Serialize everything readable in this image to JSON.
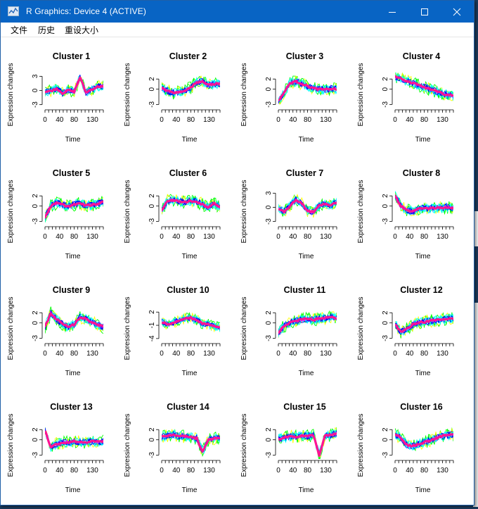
{
  "window": {
    "title": "R Graphics: Device 4 (ACTIVE)",
    "controls": {
      "minimize": "minimize",
      "maximize": "maximize",
      "close": "close"
    }
  },
  "menu": [
    "文件",
    "历史",
    "重设大小"
  ],
  "colors": {
    "titlebar": "#0864c4",
    "mean_line": "#ff1493",
    "series_palette": [
      "#00ff00",
      "#00ffff",
      "#0000ff",
      "#ff00ff",
      "#ffff00"
    ]
  },
  "chart_data": {
    "type": "line",
    "layout": "4x4 grid of small-multiple line plots",
    "x_label": "Time",
    "y_label": "Expression changes",
    "x_ticks": [
      0,
      40,
      80,
      130
    ],
    "panels": [
      {
        "title": "Cluster 1",
        "y_ticks": [
          -3,
          0,
          3
        ],
        "ylim": [
          -3.5,
          3.5
        ],
        "mean": [
          -0.3,
          -0.1,
          0.4,
          -0.6,
          0.1,
          -0.3,
          2.8,
          -0.4,
          0.2,
          0.8,
          0.9
        ]
      },
      {
        "title": "Cluster 2",
        "y_ticks": [
          -3,
          0,
          2
        ],
        "ylim": [
          -3.5,
          3
        ],
        "mean": [
          0.2,
          -0.3,
          -0.7,
          -0.6,
          -0.2,
          0.3,
          1.4,
          1.6,
          0.8,
          1.0,
          1.1
        ]
      },
      {
        "title": "Cluster 3",
        "y_ticks": [
          -3,
          0,
          2
        ],
        "ylim": [
          -3.5,
          3
        ],
        "mean": [
          -2.3,
          -0.6,
          1.2,
          1.5,
          1.1,
          0.6,
          0.2,
          0.0,
          -0.1,
          0.1,
          0.0
        ]
      },
      {
        "title": "Cluster 4",
        "y_ticks": [
          -3,
          0,
          2
        ],
        "ylim": [
          -3.5,
          3
        ],
        "mean": [
          2.5,
          2.0,
          1.6,
          1.2,
          0.8,
          0.4,
          0.0,
          -0.4,
          -0.8,
          -1.1,
          -1.3
        ]
      },
      {
        "title": "Cluster 5",
        "y_ticks": [
          -3,
          0,
          2
        ],
        "ylim": [
          -3.5,
          3
        ],
        "mean": [
          -2.3,
          0.0,
          0.6,
          0.3,
          -0.1,
          0.3,
          0.5,
          0.1,
          0.2,
          0.4,
          0.9
        ]
      },
      {
        "title": "Cluster 6",
        "y_ticks": [
          -3,
          0,
          2
        ],
        "ylim": [
          -3.5,
          3
        ],
        "mean": [
          -0.8,
          1.0,
          1.2,
          0.9,
          0.8,
          1.0,
          0.9,
          0.3,
          -0.2,
          0.5,
          -0.2
        ]
      },
      {
        "title": "Cluster 7",
        "y_ticks": [
          -3,
          0,
          3
        ],
        "ylim": [
          -3.5,
          3.5
        ],
        "mean": [
          -0.2,
          -0.9,
          0.3,
          1.6,
          0.8,
          -0.7,
          -1.0,
          0.4,
          0.8,
          0.3,
          1.2
        ]
      },
      {
        "title": "Cluster 8",
        "y_ticks": [
          -3,
          0,
          2
        ],
        "ylim": [
          -3.5,
          3
        ],
        "mean": [
          2.0,
          0.0,
          -0.8,
          -1.0,
          -0.6,
          -0.3,
          -0.5,
          -0.4,
          -0.3,
          -0.2,
          -0.4
        ]
      },
      {
        "title": "Cluster 9",
        "y_ticks": [
          -3,
          0,
          2
        ],
        "ylim": [
          -3.5,
          3
        ],
        "mean": [
          -0.8,
          1.9,
          0.7,
          -0.2,
          -0.9,
          -0.3,
          1.1,
          0.8,
          0.2,
          -0.3,
          -0.8
        ]
      },
      {
        "title": "Cluster 10",
        "y_ticks": [
          -4,
          -1,
          2
        ],
        "ylim": [
          -4.5,
          3
        ],
        "mean": [
          -0.2,
          -0.8,
          -0.4,
          0.2,
          0.5,
          0.7,
          0.2,
          -0.6,
          -0.8,
          -1.2,
          -1.5
        ]
      },
      {
        "title": "Cluster 11",
        "y_ticks": [
          -3,
          0,
          2
        ],
        "ylim": [
          -3.5,
          3
        ],
        "mean": [
          -2.0,
          -0.6,
          0.1,
          0.4,
          0.6,
          0.8,
          0.6,
          0.9,
          1.0,
          1.1,
          0.9
        ]
      },
      {
        "title": "Cluster 12",
        "y_ticks": [
          -3,
          0,
          2
        ],
        "ylim": [
          -3.5,
          3
        ],
        "mean": [
          -0.2,
          -1.8,
          -1.2,
          -0.4,
          0.1,
          0.2,
          0.4,
          0.5,
          0.6,
          0.8,
          0.9
        ]
      },
      {
        "title": "Cluster 13",
        "y_ticks": [
          -3,
          0,
          2
        ],
        "ylim": [
          -3.5,
          3
        ],
        "mean": [
          1.8,
          -1.5,
          -0.8,
          -0.6,
          -0.5,
          -0.3,
          -0.4,
          -0.5,
          -0.3,
          -0.4,
          -0.3
        ]
      },
      {
        "title": "Cluster 14",
        "y_ticks": [
          -3,
          0,
          2
        ],
        "ylim": [
          -3.5,
          3
        ],
        "mean": [
          0.6,
          0.8,
          1.0,
          0.7,
          0.6,
          0.5,
          0.3,
          -2.3,
          0.0,
          0.2,
          0.4
        ]
      },
      {
        "title": "Cluster 15",
        "y_ticks": [
          -3,
          0,
          2
        ],
        "ylim": [
          -3.5,
          3
        ],
        "mean": [
          0.2,
          0.4,
          0.7,
          0.6,
          0.8,
          0.7,
          0.9,
          -3.0,
          0.8,
          0.9,
          1.2
        ]
      },
      {
        "title": "Cluster 16",
        "y_ticks": [
          -3,
          0,
          2
        ],
        "ylim": [
          -3.5,
          3
        ],
        "mean": [
          1.1,
          0.4,
          -1.0,
          -1.2,
          -0.9,
          -0.5,
          -0.1,
          0.3,
          0.7,
          0.9,
          1.0
        ]
      }
    ]
  }
}
